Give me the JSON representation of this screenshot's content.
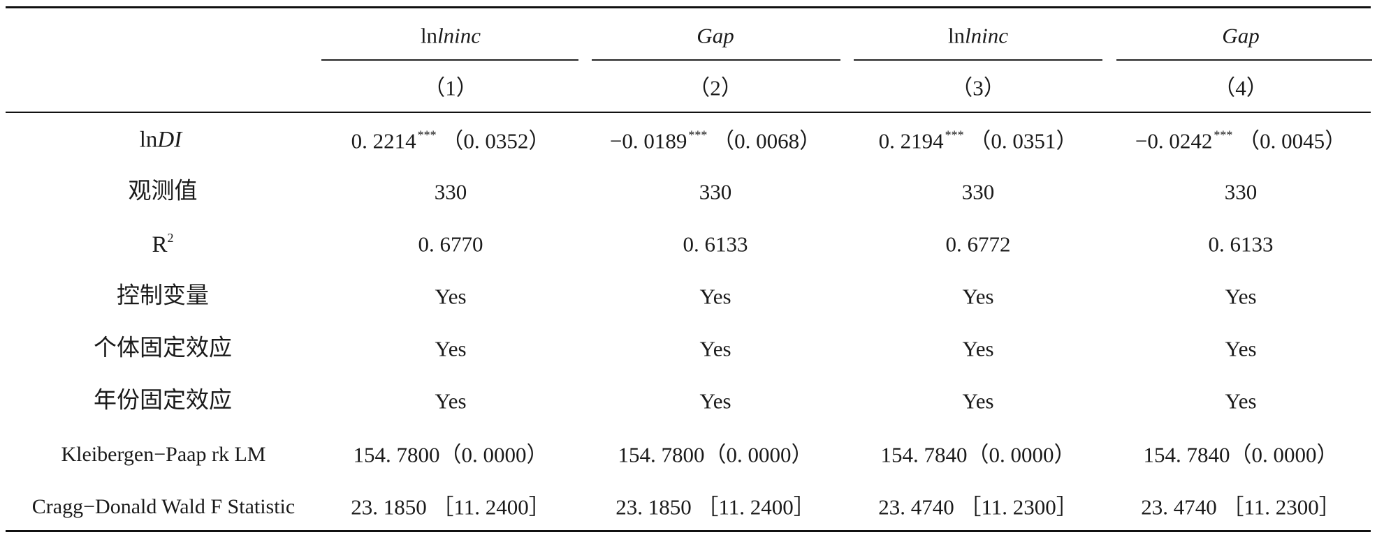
{
  "header": {
    "dep_vars": [
      "lninc",
      "Gap",
      "lninc",
      "Gap"
    ],
    "model_nums": [
      "（1）",
      "（2）",
      "（3）",
      "（4）"
    ]
  },
  "rows": {
    "lndi": {
      "label": "lnDI",
      "cells": [
        {
          "coef": "0. 2214",
          "stars": "***",
          "se": "（0. 0352）"
        },
        {
          "coef": "−0. 0189",
          "stars": "***",
          "se": "（0. 0068）"
        },
        {
          "coef": "0. 2194",
          "stars": "***",
          "se": "（0. 0351）"
        },
        {
          "coef": "−0. 0242",
          "stars": "***",
          "se": "（0. 0045）"
        }
      ]
    },
    "obs": {
      "label": "观测值",
      "values": [
        "330",
        "330",
        "330",
        "330"
      ]
    },
    "r2": {
      "label": "R",
      "label_sup": "2",
      "values": [
        "0. 6770",
        "0. 6133",
        "0. 6772",
        "0. 6133"
      ]
    },
    "controls": {
      "label": "控制变量",
      "values": [
        "Yes",
        "Yes",
        "Yes",
        "Yes"
      ]
    },
    "indiv_fe": {
      "label": "个体固定效应",
      "values": [
        "Yes",
        "Yes",
        "Yes",
        "Yes"
      ]
    },
    "year_fe": {
      "label": "年份固定效应",
      "values": [
        "Yes",
        "Yes",
        "Yes",
        "Yes"
      ]
    },
    "kp_lm": {
      "label": "Kleibergen−Paap rk LM",
      "values": [
        "154. 7800（0. 0000）",
        "154. 7800（0. 0000）",
        "154. 7840（0. 0000）",
        "154. 7840（0. 0000）"
      ]
    },
    "cd_wald": {
      "label": "Cragg−Donald Wald F Statistic",
      "values": [
        "23. 1850 ［11. 2400］",
        "23. 1850 ［11. 2400］",
        "23. 4740 ［11. 2300］",
        "23. 4740 ［11. 2300］"
      ]
    }
  }
}
